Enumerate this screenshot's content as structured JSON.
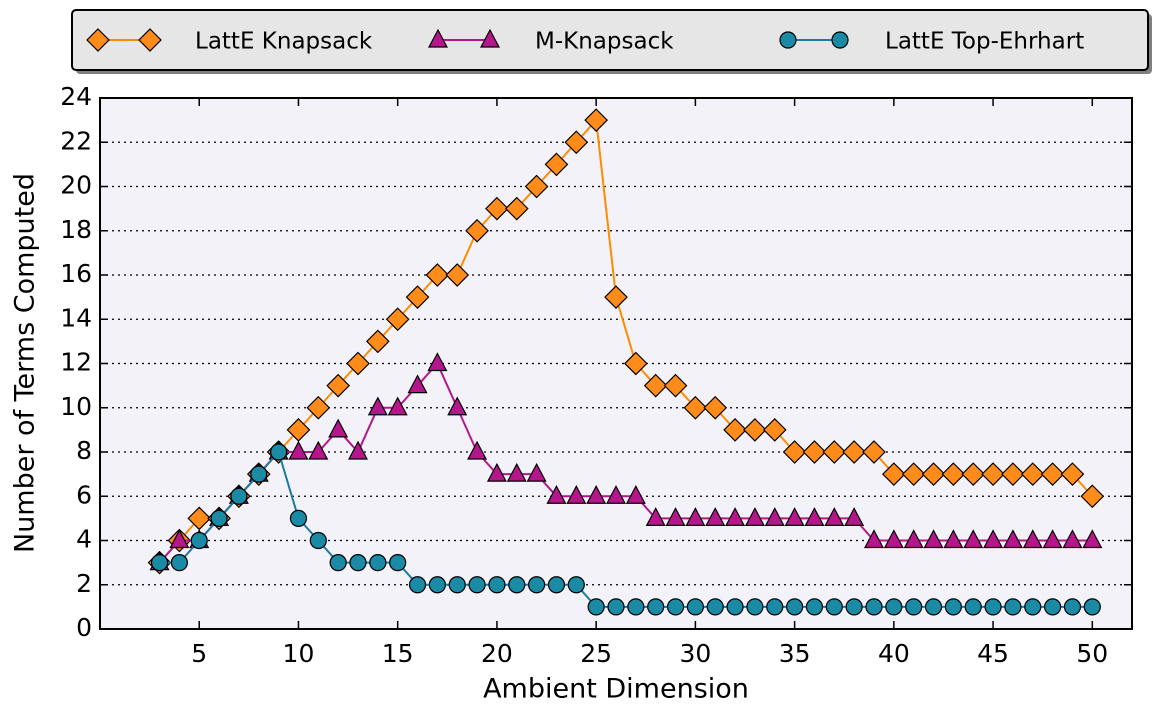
{
  "chart_data": {
    "type": "line",
    "xlabel": "Ambient Dimension",
    "ylabel": "Number of Terms Computed",
    "x": [
      3,
      4,
      5,
      6,
      7,
      8,
      9,
      10,
      11,
      12,
      13,
      14,
      15,
      16,
      17,
      18,
      19,
      20,
      21,
      22,
      23,
      24,
      25,
      26,
      27,
      28,
      29,
      30,
      31,
      32,
      33,
      34,
      35,
      36,
      37,
      38,
      39,
      40,
      41,
      42,
      43,
      44,
      45,
      46,
      47,
      48,
      49,
      50
    ],
    "series": [
      {
        "name": "LattE Knapsack",
        "color": "#ff8c1a",
        "marker": "diamond",
        "values": [
          3,
          4,
          5,
          5,
          6,
          7,
          8,
          9,
          10,
          11,
          12,
          13,
          14,
          15,
          16,
          16,
          18,
          19,
          19,
          20,
          21,
          22,
          23,
          15,
          12,
          11,
          11,
          10,
          10,
          9,
          9,
          9,
          8,
          8,
          8,
          8,
          8,
          7,
          7,
          7,
          7,
          7,
          7,
          7,
          7,
          7,
          7,
          6
        ]
      },
      {
        "name": "M-Knapsack",
        "color": "#b5168c",
        "marker": "triangle",
        "values": [
          3,
          4,
          4,
          5,
          6,
          7,
          8,
          8,
          8,
          9,
          8,
          10,
          10,
          11,
          12,
          10,
          8,
          7,
          7,
          7,
          6,
          6,
          6,
          6,
          6,
          5,
          5,
          5,
          5,
          5,
          5,
          5,
          5,
          5,
          5,
          5,
          4,
          4,
          4,
          4,
          4,
          4,
          4,
          4,
          4,
          4,
          4,
          4
        ]
      },
      {
        "name": "LattE Top-Ehrhart",
        "color": "#1a8aa5",
        "marker": "circle",
        "values": [
          3,
          3,
          4,
          5,
          6,
          7,
          8,
          5,
          4,
          3,
          3,
          3,
          3,
          2,
          2,
          2,
          2,
          2,
          2,
          2,
          2,
          2,
          1,
          1,
          1,
          1,
          1,
          1,
          1,
          1,
          1,
          1,
          1,
          1,
          1,
          1,
          1,
          1,
          1,
          1,
          1,
          1,
          1,
          1,
          1,
          1,
          1,
          1
        ]
      }
    ],
    "xlim": [
      0,
      52
    ],
    "xticks": [
      5,
      10,
      15,
      20,
      25,
      30,
      35,
      40,
      45,
      50
    ],
    "ylim": [
      0,
      24
    ],
    "yticks": [
      0,
      2,
      4,
      6,
      8,
      10,
      12,
      14,
      16,
      18,
      20,
      22,
      24
    ],
    "grid": true,
    "legend": "top"
  }
}
